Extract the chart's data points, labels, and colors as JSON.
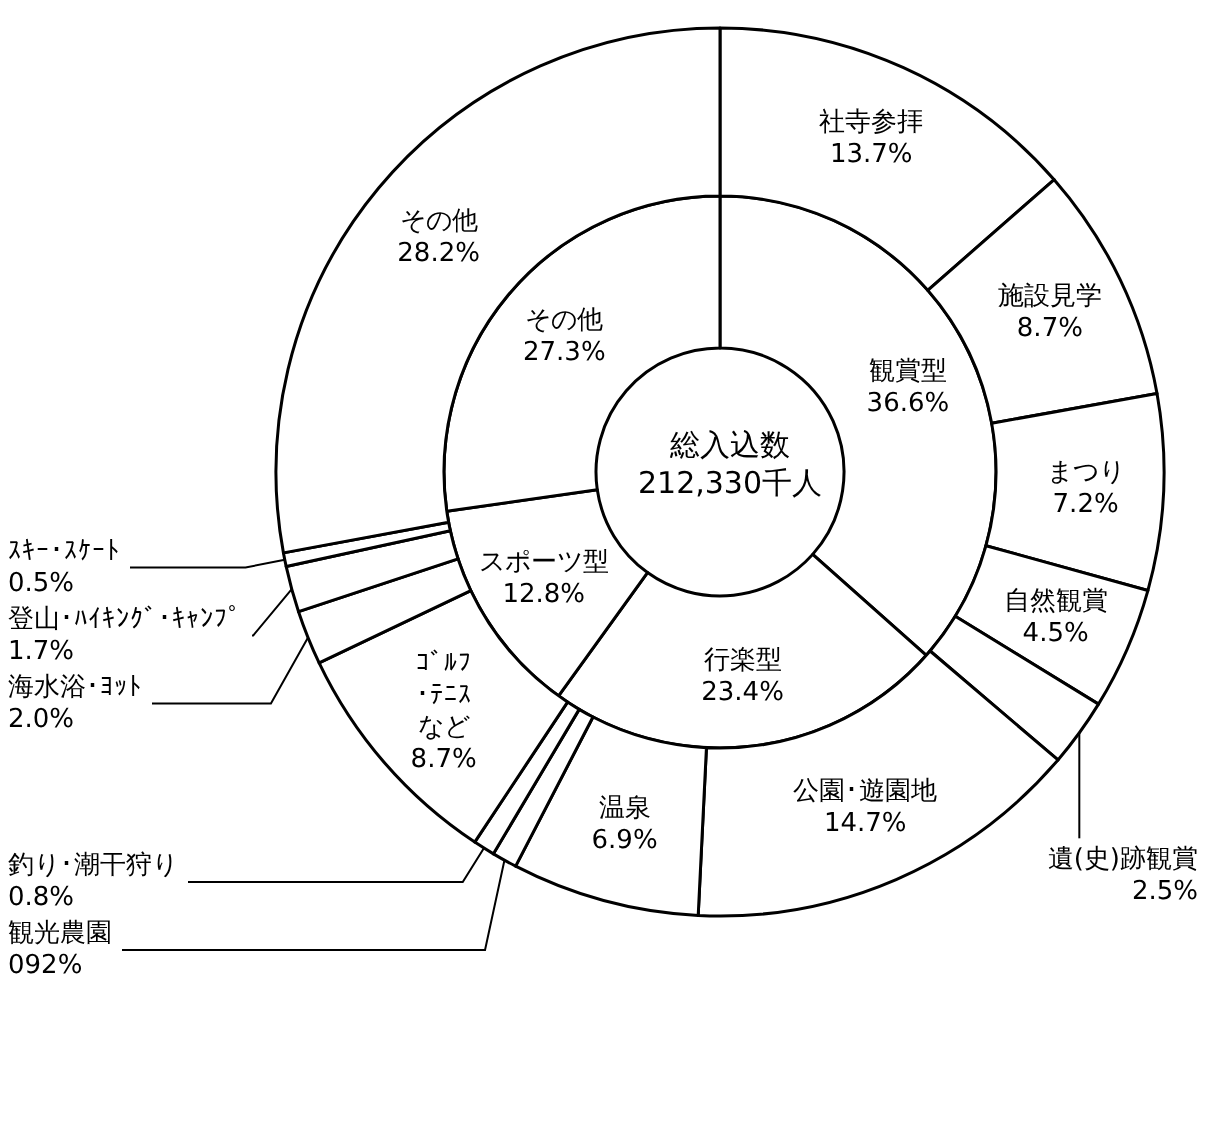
{
  "chart_data": [
    {
      "type": "donut",
      "title": "総入込数",
      "subtitle": "212,330千人",
      "categories": [
        "観賞型",
        "行楽型",
        "スポーツ型",
        "その他"
      ],
      "values": [
        36.6,
        23.4,
        12.8,
        27.3
      ],
      "value_labels": [
        "36.6%",
        "23.4%",
        "12.8%",
        "27.3%"
      ],
      "colors": [
        "#ffffff",
        "#ffffff",
        "#ffffff",
        "#ffffff"
      ]
    },
    {
      "type": "donut",
      "categories": [
        "社寺参拝",
        "施設見学",
        "まつり",
        "自然観賞",
        "遺(史)跡観賞",
        "公園･遊園地",
        "温泉",
        "観光農園",
        "釣り･潮干狩り",
        "ｺﾞﾙﾌ･ﾃﾆｽなど",
        "海水浴･ﾖｯﾄ",
        "登山･ﾊｲｷﾝｸﾞ･ｷｬﾝﾌﾟ",
        "ｽｷｰ･ｽｹｰﾄ",
        "その他"
      ],
      "values": [
        13.7,
        8.7,
        7.2,
        4.5,
        2.5,
        14.7,
        6.9,
        0.92,
        0.8,
        8.7,
        2.0,
        1.7,
        0.5,
        28.2
      ],
      "value_labels": [
        "13.7%",
        "8.7%",
        "7.2%",
        "4.5%",
        "2.5%",
        "14.7%",
        "6.9%",
        "092%",
        "0.8%",
        "8.7%",
        "2.0%",
        "1.7%",
        "0.5%",
        "28.2%"
      ],
      "colors": [
        "#ffffff",
        "#ffffff",
        "#ffffff",
        "#ffffff",
        "#ffffff",
        "#ffffff",
        "#ffffff",
        "#ffffff",
        "#ffffff",
        "#ffffff",
        "#ffffff",
        "#ffffff",
        "#ffffff",
        "#ffffff"
      ]
    }
  ]
}
